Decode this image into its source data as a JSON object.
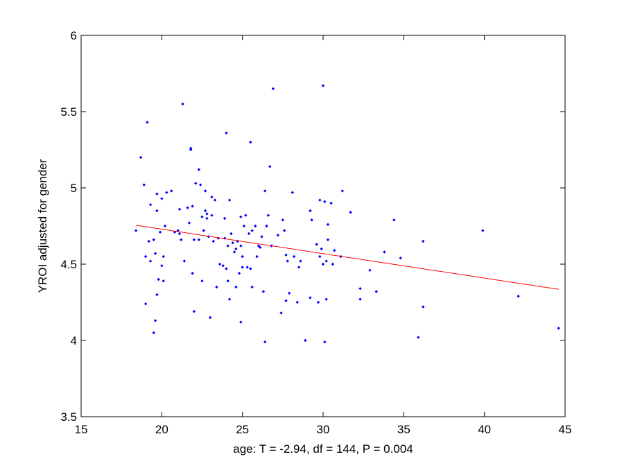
{
  "chart_data": {
    "type": "scatter",
    "title": "",
    "xlabel": "age: T = -2.94, df = 144, P = 0.004",
    "ylabel": "YROI adjusted for gender",
    "xlim": [
      15,
      45
    ],
    "ylim": [
      3.5,
      6
    ],
    "xticks": [
      15,
      20,
      25,
      30,
      35,
      40,
      45
    ],
    "yticks": [
      3.5,
      4,
      4.5,
      5,
      5.5,
      6
    ],
    "xtick_labels": [
      "15",
      "20",
      "25",
      "30",
      "35",
      "40",
      "45"
    ],
    "ytick_labels": [
      "3.5",
      "4",
      "4.5",
      "5",
      "5.5",
      "6"
    ],
    "grid": false,
    "legend": null,
    "colors": {
      "points": "#0000ff",
      "fit_line": "#ff0000",
      "axes": "#000000",
      "background": "#ffffff"
    },
    "series": [
      {
        "values": [
          [
            18.4,
            4.72
          ],
          [
            18.7,
            5.2
          ],
          [
            18.9,
            5.02
          ],
          [
            19.0,
            4.55
          ],
          [
            19.0,
            4.24
          ],
          [
            19.1,
            5.43
          ],
          [
            19.2,
            4.65
          ],
          [
            19.3,
            4.89
          ],
          [
            19.3,
            4.52
          ],
          [
            19.5,
            4.66
          ],
          [
            19.5,
            4.05
          ],
          [
            19.6,
            4.57
          ],
          [
            19.6,
            4.13
          ],
          [
            19.7,
            4.96
          ],
          [
            19.7,
            4.85
          ],
          [
            19.7,
            4.3
          ],
          [
            19.8,
            4.4
          ],
          [
            19.9,
            4.71
          ],
          [
            20.0,
            4.93
          ],
          [
            20.0,
            4.49
          ],
          [
            20.1,
            4.55
          ],
          [
            20.1,
            4.39
          ],
          [
            20.2,
            4.75
          ],
          [
            20.3,
            4.97
          ],
          [
            20.6,
            4.98
          ],
          [
            20.8,
            4.71
          ],
          [
            21.0,
            4.72
          ],
          [
            21.1,
            4.86
          ],
          [
            21.1,
            4.7
          ],
          [
            21.2,
            4.66
          ],
          [
            21.3,
            5.55
          ],
          [
            21.4,
            4.52
          ],
          [
            21.6,
            4.87
          ],
          [
            21.7,
            4.77
          ],
          [
            21.8,
            5.26
          ],
          [
            21.8,
            5.25
          ],
          [
            21.9,
            4.88
          ],
          [
            21.9,
            4.44
          ],
          [
            22.0,
            4.19
          ],
          [
            22.0,
            4.66
          ],
          [
            22.1,
            5.03
          ],
          [
            22.3,
            5.12
          ],
          [
            22.3,
            4.66
          ],
          [
            22.4,
            5.02
          ],
          [
            22.5,
            4.81
          ],
          [
            22.5,
            4.39
          ],
          [
            22.6,
            4.72
          ],
          [
            22.7,
            4.98
          ],
          [
            22.7,
            4.85
          ],
          [
            22.8,
            4.83
          ],
          [
            22.8,
            4.8
          ],
          [
            22.9,
            4.68
          ],
          [
            23.0,
            4.15
          ],
          [
            23.1,
            4.82
          ],
          [
            23.1,
            4.94
          ],
          [
            23.2,
            4.65
          ],
          [
            23.3,
            4.92
          ],
          [
            23.4,
            4.35
          ],
          [
            23.5,
            4.67
          ],
          [
            23.6,
            4.5
          ],
          [
            23.8,
            4.49
          ],
          [
            23.9,
            4.67
          ],
          [
            23.9,
            4.8
          ],
          [
            24.0,
            5.36
          ],
          [
            24.0,
            4.47
          ],
          [
            24.1,
            4.62
          ],
          [
            24.1,
            4.39
          ],
          [
            24.2,
            4.27
          ],
          [
            24.2,
            4.92
          ],
          [
            24.3,
            4.7
          ],
          [
            24.4,
            4.64
          ],
          [
            24.5,
            4.58
          ],
          [
            24.6,
            4.6
          ],
          [
            24.6,
            4.35
          ],
          [
            24.7,
            4.65
          ],
          [
            24.8,
            4.44
          ],
          [
            24.9,
            4.12
          ],
          [
            24.9,
            4.81
          ],
          [
            24.9,
            4.62
          ],
          [
            25.0,
            4.55
          ],
          [
            25.0,
            4.48
          ],
          [
            25.1,
            4.75
          ],
          [
            25.2,
            4.82
          ],
          [
            25.3,
            4.48
          ],
          [
            25.4,
            4.7
          ],
          [
            25.5,
            5.3
          ],
          [
            25.5,
            4.47
          ],
          [
            25.6,
            4.35
          ],
          [
            25.6,
            4.72
          ],
          [
            25.8,
            4.75
          ],
          [
            25.9,
            4.55
          ],
          [
            26.0,
            4.62
          ],
          [
            26.1,
            4.61
          ],
          [
            26.2,
            4.68
          ],
          [
            26.3,
            4.32
          ],
          [
            26.4,
            4.98
          ],
          [
            26.4,
            3.99
          ],
          [
            26.5,
            4.75
          ],
          [
            26.6,
            4.82
          ],
          [
            26.7,
            5.14
          ],
          [
            26.8,
            4.62
          ],
          [
            26.9,
            5.65
          ],
          [
            27.2,
            4.69
          ],
          [
            27.4,
            4.18
          ],
          [
            27.5,
            4.79
          ],
          [
            27.6,
            4.72
          ],
          [
            27.7,
            4.56
          ],
          [
            27.7,
            4.26
          ],
          [
            27.8,
            4.52
          ],
          [
            27.9,
            4.31
          ],
          [
            28.1,
            4.97
          ],
          [
            28.2,
            4.55
          ],
          [
            28.4,
            4.25
          ],
          [
            28.5,
            4.48
          ],
          [
            28.6,
            4.52
          ],
          [
            28.9,
            4.0
          ],
          [
            29.2,
            4.85
          ],
          [
            29.2,
            4.28
          ],
          [
            29.3,
            4.79
          ],
          [
            29.6,
            4.63
          ],
          [
            29.7,
            4.25
          ],
          [
            29.8,
            4.92
          ],
          [
            29.8,
            4.55
          ],
          [
            29.9,
            4.6
          ],
          [
            30.0,
            4.5
          ],
          [
            30.0,
            5.67
          ],
          [
            30.1,
            4.91
          ],
          [
            30.1,
            3.99
          ],
          [
            30.2,
            4.52
          ],
          [
            30.2,
            4.27
          ],
          [
            30.3,
            4.76
          ],
          [
            30.3,
            4.66
          ],
          [
            30.5,
            4.9
          ],
          [
            30.6,
            4.5
          ],
          [
            30.7,
            4.59
          ],
          [
            31.1,
            4.55
          ],
          [
            31.2,
            4.98
          ],
          [
            31.7,
            4.84
          ],
          [
            32.3,
            4.34
          ],
          [
            32.3,
            4.27
          ],
          [
            32.9,
            4.46
          ],
          [
            33.3,
            4.32
          ],
          [
            33.8,
            4.58
          ],
          [
            34.4,
            4.79
          ],
          [
            34.8,
            4.54
          ],
          [
            35.9,
            4.02
          ],
          [
            36.2,
            4.65
          ],
          [
            36.2,
            4.22
          ],
          [
            39.9,
            4.72
          ],
          [
            42.1,
            4.29
          ],
          [
            44.6,
            4.08
          ]
        ]
      }
    ],
    "fit_line": {
      "x": [
        18.4,
        44.6
      ],
      "y": [
        4.755,
        4.335
      ]
    }
  }
}
